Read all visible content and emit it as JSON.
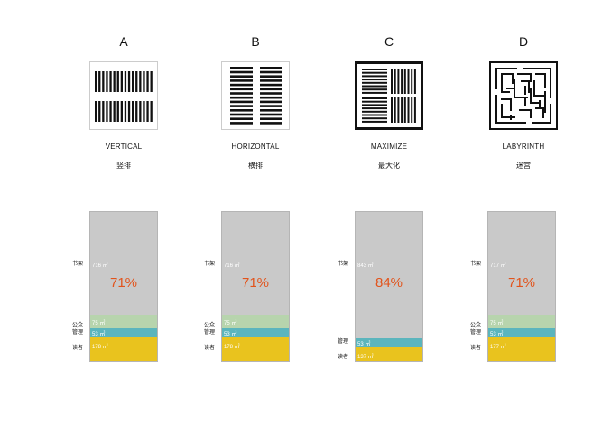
{
  "columns": [
    {
      "letter": "A",
      "name_en": "VERTICAL",
      "name_cn": "竖排",
      "book": {
        "label": "716 ㎡",
        "side": "书架"
      },
      "public": {
        "label": "75 ㎡",
        "side": "公众"
      },
      "admin": {
        "label": "53 ㎡",
        "side": "管理"
      },
      "reader": {
        "label": "178 ㎡",
        "side": "读者"
      },
      "percent": "71%"
    },
    {
      "letter": "B",
      "name_en": "HORIZONTAL",
      "name_cn": "横排",
      "book": {
        "label": "716 ㎡",
        "side": "书架"
      },
      "public": {
        "label": "75 ㎡",
        "side": "公众"
      },
      "admin": {
        "label": "53 ㎡",
        "side": "管理"
      },
      "reader": {
        "label": "178 ㎡",
        "side": "读者"
      },
      "percent": "71%"
    },
    {
      "letter": "C",
      "name_en": "MAXIMIZE",
      "name_cn": "最大化",
      "book": {
        "label": "843 ㎡",
        "side": "书架"
      },
      "admin": {
        "label": "53 ㎡",
        "side": "管理"
      },
      "reader": {
        "label": "137 ㎡",
        "side": "读者"
      },
      "percent": "84%"
    },
    {
      "letter": "D",
      "name_en": "LABYRINTH",
      "name_cn": "迷宫",
      "book": {
        "label": "717 ㎡",
        "side": "书架"
      },
      "public": {
        "label": "75 ㎡",
        "side": "公众"
      },
      "admin": {
        "label": "53 ㎡",
        "side": "管理"
      },
      "reader": {
        "label": "177 ㎡",
        "side": "读者"
      },
      "percent": "71%"
    }
  ],
  "colors": {
    "book": "#c9c9c9",
    "public": "#b7d4ad",
    "admin": "#5bb5bd",
    "reader": "#e9c31e",
    "percent": "#e2531b"
  }
}
